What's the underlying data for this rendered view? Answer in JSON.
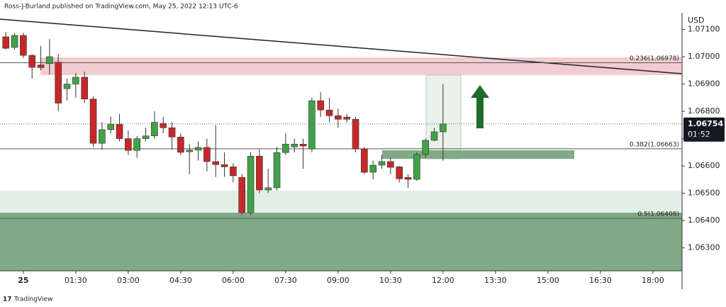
{
  "header": "Ross-J-Burland published on TradingView.com, May 25, 2022 12:13 UTC-6",
  "footer": "TradingView",
  "chart_data": {
    "type": "candlestick",
    "y_axis_label": "USD",
    "last_price_label": "1.06754",
    "countdown": "01:52",
    "x": [
      -30,
      -15,
      0,
      15,
      30,
      45,
      60,
      75,
      90,
      105,
      120,
      135,
      150,
      165,
      180,
      195,
      210,
      225,
      240,
      255,
      270,
      285,
      300,
      315,
      330,
      345,
      360,
      375,
      390,
      405,
      420,
      435,
      450,
      465,
      480,
      495,
      510,
      525,
      540,
      555,
      570,
      585,
      600,
      615,
      630,
      645,
      660,
      675,
      690,
      705,
      720
    ],
    "open": [
      1.07073,
      1.07034,
      1.07078,
      1.07005,
      1.0697,
      1.06975,
      1.0698,
      1.06883,
      1.069,
      1.06925,
      1.06845,
      1.06683,
      1.06733,
      1.06753,
      1.067,
      1.06657,
      1.067,
      1.0671,
      1.06756,
      1.0674,
      1.06706,
      1.06652,
      1.06658,
      1.06668,
      1.06616,
      1.06605,
      1.06597,
      1.06558,
      1.06429,
      1.06636,
      1.06512,
      1.0652,
      1.06649,
      1.0667,
      1.0668,
      1.06662,
      1.06839,
      1.06805,
      1.06784,
      1.06779,
      1.06771,
      1.06662,
      1.06577,
      1.06603,
      1.06616,
      1.06597,
      1.06558,
      1.06551,
      1.06642,
      1.06694,
      1.06725
    ],
    "high": [
      1.07091,
      1.07086,
      1.07088,
      1.0701,
      1.0704,
      1.07065,
      1.0701,
      1.0692,
      1.0694,
      1.06945,
      1.06855,
      1.0676,
      1.0678,
      1.0679,
      1.0673,
      1.0671,
      1.0674,
      1.068,
      1.0678,
      1.0676,
      1.0672,
      1.0668,
      1.0669,
      1.067,
      1.0675,
      1.0665,
      1.0661,
      1.0657,
      1.0665,
      1.0666,
      1.0659,
      1.0667,
      1.0672,
      1.067,
      1.067,
      1.0685,
      1.0687,
      1.0685,
      1.0681,
      1.0679,
      1.0678,
      1.0667,
      1.0662,
      1.0664,
      1.0663,
      1.066,
      1.0657,
      1.0665,
      1.067,
      1.0674,
      1.069
    ],
    "low": [
      1.07026,
      1.07026,
      1.06995,
      1.0692,
      1.0695,
      1.06935,
      1.068,
      1.0684,
      1.0685,
      1.0683,
      1.0667,
      1.0666,
      1.0672,
      1.0669,
      1.0664,
      1.0663,
      1.0669,
      1.067,
      1.0672,
      1.0666,
      1.0664,
      1.0657,
      1.0662,
      1.0658,
      1.0656,
      1.0656,
      1.0654,
      1.0642,
      1.0642,
      1.065,
      1.065,
      1.0651,
      1.0664,
      1.0665,
      1.0659,
      1.0665,
      1.0678,
      1.0676,
      1.0674,
      1.0676,
      1.0665,
      1.0657,
      1.0655,
      1.0659,
      1.0657,
      1.0654,
      1.0652,
      1.06545,
      1.0663,
      1.0669,
      1.0662
    ],
    "close": [
      1.07031,
      1.07078,
      1.07005,
      1.06961,
      1.0696,
      1.07,
      1.0683,
      1.069,
      1.06925,
      1.06845,
      1.06683,
      1.06733,
      1.06753,
      1.067,
      1.06657,
      1.067,
      1.0671,
      1.0676,
      1.0674,
      1.06706,
      1.0665,
      1.06658,
      1.06668,
      1.06616,
      1.06605,
      1.06597,
      1.06564,
      1.06429,
      1.06636,
      1.06512,
      1.0652,
      1.06649,
      1.0668,
      1.0668,
      1.06673,
      1.06839,
      1.06805,
      1.06784,
      1.06771,
      1.06771,
      1.06662,
      1.06577,
      1.06603,
      1.06616,
      1.06595,
      1.06553,
      1.06551,
      1.06642,
      1.06694,
      1.06725,
      1.06754
    ],
    "up_color": "#43a047",
    "down_color": "#c62828",
    "xlim": [
      -40,
      1130
    ],
    "xticks": [
      {
        "value": 0,
        "label": "25"
      },
      {
        "value": 90,
        "label": "01:30"
      },
      {
        "value": 180,
        "label": "03:00"
      },
      {
        "value": 270,
        "label": "04:30"
      },
      {
        "value": 360,
        "label": "06:00"
      },
      {
        "value": 450,
        "label": "07:30"
      },
      {
        "value": 540,
        "label": "09:00"
      },
      {
        "value": 630,
        "label": "10:30"
      },
      {
        "value": 720,
        "label": "12:00"
      },
      {
        "value": 810,
        "label": "13:30"
      },
      {
        "value": 900,
        "label": "15:00"
      },
      {
        "value": 990,
        "label": "16:30"
      },
      {
        "value": 1080,
        "label": "18:00"
      }
    ],
    "ylim": [
      1.06216,
      1.07161
    ],
    "yticks": [
      {
        "value": 1.063,
        "label": "1.06300"
      },
      {
        "value": 1.064,
        "label": "1.06400"
      },
      {
        "value": 1.065,
        "label": "1.06500"
      },
      {
        "value": 1.066,
        "label": "1.06600"
      },
      {
        "value": 1.067,
        "label": "1.06700"
      },
      {
        "value": 1.068,
        "label": "1.06800"
      },
      {
        "value": 1.069,
        "label": "1.06900"
      },
      {
        "value": 1.07,
        "label": "1.07000"
      },
      {
        "value": 1.071,
        "label": "1.07100"
      }
    ],
    "fib_levels": [
      {
        "value": 1.06978,
        "label": "0.236(1.06978)"
      },
      {
        "value": 1.06663,
        "label": "0.382(1.06663)"
      },
      {
        "value": 1.06408,
        "label": "0.5(1.06408)"
      }
    ],
    "grid": false
  }
}
